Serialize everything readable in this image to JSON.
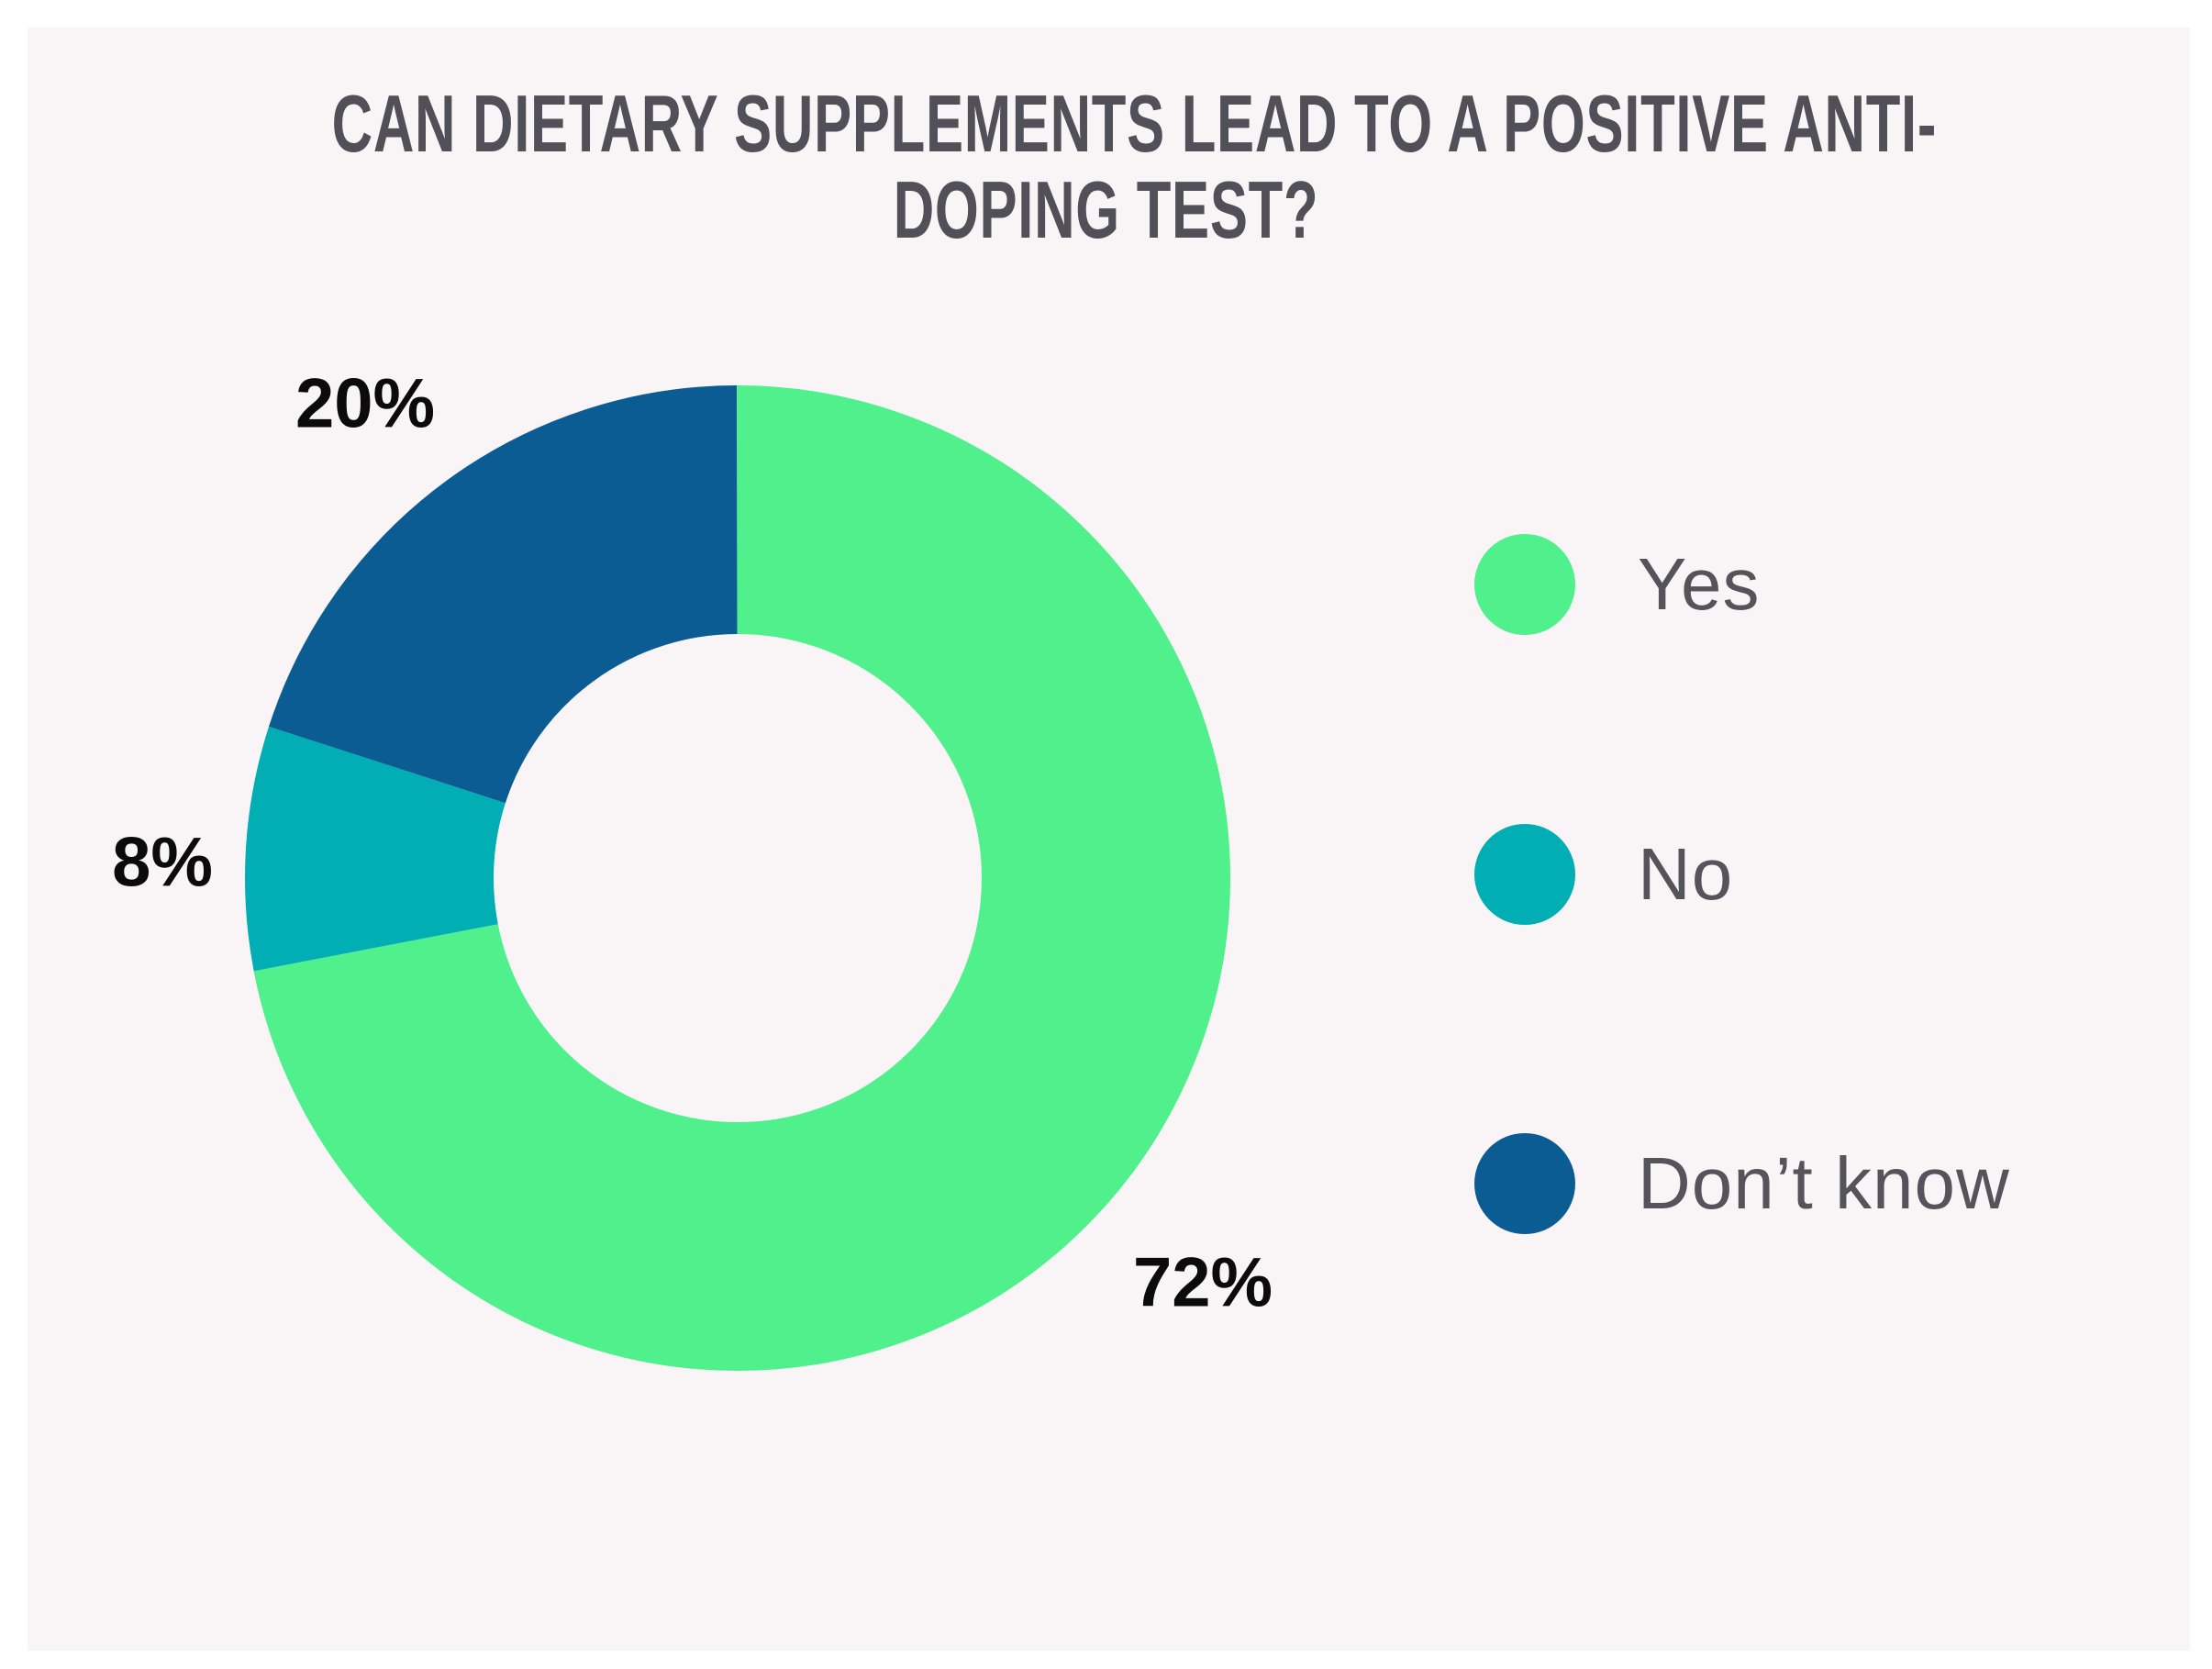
{
  "title": "CAN DIETARY SUPPLEMENTS LEAD TO A POSITIVE ANTI-\nDOPING TEST?",
  "colors": {
    "page_background": "#ffffff",
    "canvas_background": "#f9f5f6",
    "title_text": "#514f57",
    "legend_text": "#55545b",
    "label_text": "#0b0b0b"
  },
  "chart_data": {
    "type": "pie",
    "subtype": "donut",
    "title": "CAN DIETARY SUPPLEMENTS LEAD TO A POSITIVE ANTI-DOPING TEST?",
    "categories": [
      "Yes",
      "No",
      "Don’t know"
    ],
    "values": [
      72,
      8,
      20
    ],
    "unit": "%",
    "start_angle_deg": 0,
    "direction": "clockwise",
    "legend_position": "right",
    "grid": false,
    "slices": [
      {
        "name": "Yes",
        "value": 72,
        "label": "72%",
        "color": "#50f08d"
      },
      {
        "name": "No",
        "value": 8,
        "label": "8%",
        "color": "#00aeb4"
      },
      {
        "name": "Don’t know",
        "value": 20,
        "label": "20%",
        "color": "#0c5c94"
      }
    ]
  }
}
